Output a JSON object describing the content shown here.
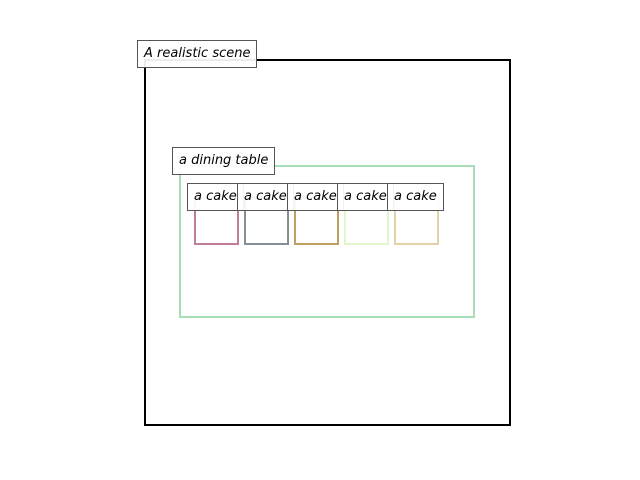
{
  "scene": {
    "label": "A realistic scene",
    "border_color": "#000000"
  },
  "table": {
    "label": "a dining table",
    "border_color": "#a6dfb5"
  },
  "cakes": [
    {
      "label": "a cake",
      "border_color": "#c27d9a"
    },
    {
      "label": "a cake",
      "border_color": "#858f98"
    },
    {
      "label": "a cake",
      "border_color": "#c0a060"
    },
    {
      "label": "a cake",
      "border_color": "#e2f6cc"
    },
    {
      "label": "a cake",
      "border_color": "#e4d2a8"
    }
  ]
}
